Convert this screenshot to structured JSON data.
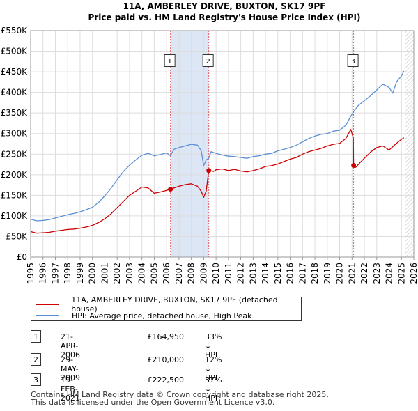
{
  "title_line1": "11A, AMBERLEY DRIVE, BUXTON, SK17 9PF",
  "title_line2": "Price paid vs. HM Land Registry's House Price Index (HPI)",
  "colors": {
    "property": "#cc0000",
    "hpi": "#5b8fd4",
    "shade": "#dce6f5",
    "marker_line": "#e06060",
    "grid": "#dddddd"
  },
  "chart_data": {
    "type": "line",
    "ylim": [
      0,
      550000
    ],
    "xlim": [
      1995,
      2026
    ],
    "y_ticks": [
      0,
      50000,
      100000,
      150000,
      200000,
      250000,
      300000,
      350000,
      400000,
      450000,
      500000,
      550000
    ],
    "y_tick_labels": [
      "£0",
      "£50K",
      "£100K",
      "£150K",
      "£200K",
      "£250K",
      "£300K",
      "£350K",
      "£400K",
      "£450K",
      "£500K",
      "£550K"
    ],
    "x_ticks": [
      "1995",
      "1996",
      "1997",
      "1998",
      "1999",
      "2000",
      "2001",
      "2002",
      "2003",
      "2004",
      "2005",
      "2006",
      "2007",
      "2008",
      "2009",
      "2010",
      "2011",
      "2012",
      "2013",
      "2014",
      "2015",
      "2016",
      "2017",
      "2018",
      "2019",
      "2020",
      "2021",
      "2022",
      "2023",
      "2024",
      "2025",
      "2026"
    ],
    "series": [
      {
        "name": "11A, AMBERLEY DRIVE, BUXTON, SK17 9PF (detached house)",
        "x": [
          1995.0,
          1995.5,
          1996.0,
          1996.5,
          1997.0,
          1997.5,
          1998.0,
          1998.5,
          1999.0,
          1999.5,
          2000.0,
          2000.5,
          2001.0,
          2001.5,
          2002.0,
          2002.5,
          2003.0,
          2003.5,
          2004.0,
          2004.5,
          2005.0,
          2005.5,
          2006.0,
          2006.3,
          2006.6,
          2007.0,
          2007.5,
          2008.0,
          2008.5,
          2008.8,
          2009.0,
          2009.2,
          2009.41,
          2009.5,
          2009.8,
          2010.0,
          2010.5,
          2011.0,
          2011.5,
          2012.0,
          2012.5,
          2013.0,
          2013.5,
          2014.0,
          2014.5,
          2015.0,
          2015.5,
          2016.0,
          2016.5,
          2017.0,
          2017.5,
          2018.0,
          2018.5,
          2019.0,
          2019.5,
          2020.0,
          2020.5,
          2020.9,
          2021.1,
          2021.13,
          2021.3,
          2021.6,
          2022.0,
          2022.5,
          2023.0,
          2023.5,
          2024.0,
          2024.5,
          2025.0,
          2025.2
        ],
        "values": [
          62000,
          58000,
          59000,
          60000,
          63000,
          65000,
          67000,
          68000,
          70000,
          73000,
          77000,
          84000,
          93000,
          105000,
          120000,
          135000,
          150000,
          160000,
          170000,
          168000,
          155000,
          158000,
          162000,
          164950,
          168000,
          172000,
          176000,
          178000,
          172000,
          160000,
          145000,
          160000,
          210000,
          210000,
          208000,
          212000,
          214000,
          210000,
          213000,
          209000,
          207000,
          210000,
          214000,
          220000,
          222000,
          226000,
          232000,
          238000,
          242000,
          250000,
          256000,
          260000,
          264000,
          270000,
          274000,
          276000,
          288000,
          310000,
          290000,
          222500,
          218000,
          228000,
          240000,
          255000,
          266000,
          270000,
          260000,
          274000,
          286000,
          290000
        ]
      },
      {
        "name": "HPI: Average price, detached house, High Peak",
        "x": [
          1995.0,
          1995.5,
          1996.0,
          1996.5,
          1997.0,
          1997.5,
          1998.0,
          1998.5,
          1999.0,
          1999.5,
          2000.0,
          2000.5,
          2001.0,
          2001.5,
          2002.0,
          2002.5,
          2003.0,
          2003.5,
          2004.0,
          2004.5,
          2005.0,
          2005.5,
          2006.0,
          2006.3,
          2006.6,
          2007.0,
          2007.5,
          2008.0,
          2008.5,
          2008.8,
          2009.0,
          2009.2,
          2009.41,
          2009.6,
          2010.0,
          2010.5,
          2011.0,
          2011.5,
          2012.0,
          2012.5,
          2013.0,
          2013.5,
          2014.0,
          2014.5,
          2015.0,
          2015.5,
          2016.0,
          2016.5,
          2017.0,
          2017.5,
          2018.0,
          2018.5,
          2019.0,
          2019.5,
          2020.0,
          2020.5,
          2020.9,
          2021.13,
          2021.5,
          2022.0,
          2022.5,
          2023.0,
          2023.5,
          2024.0,
          2024.3,
          2024.6,
          2025.0,
          2025.2
        ],
        "values": [
          92000,
          88000,
          89000,
          91000,
          95000,
          99000,
          103000,
          106000,
          110000,
          115000,
          121000,
          133000,
          149000,
          167000,
          188000,
          208000,
          223000,
          236000,
          247000,
          252000,
          246000,
          249000,
          253000,
          246000,
          262000,
          266000,
          270000,
          274000,
          272000,
          258000,
          222000,
          236000,
          240000,
          256000,
          252000,
          248000,
          245000,
          244000,
          242000,
          240000,
          244000,
          246000,
          250000,
          252000,
          258000,
          262000,
          266000,
          272000,
          280000,
          288000,
          294000,
          298000,
          300000,
          306000,
          308000,
          320000,
          342000,
          353000,
          368000,
          380000,
          392000,
          406000,
          420000,
          412000,
          398000,
          426000,
          440000,
          452000
        ]
      }
    ],
    "markers": [
      {
        "label": "1",
        "x": 2006.31,
        "value": 164950
      },
      {
        "label": "2",
        "x": 2009.41,
        "value": 210000
      },
      {
        "label": "3",
        "x": 2021.13,
        "value": 222500
      }
    ],
    "shaded_range": [
      2006.31,
      2009.41
    ],
    "future_hatch_from": 2025.3
  },
  "legend": {
    "property_label": "11A, AMBERLEY DRIVE, BUXTON, SK17 9PF (detached house)",
    "hpi_label": "HPI: Average price, detached house, High Peak"
  },
  "transactions": [
    {
      "num": "1",
      "date": "21-APR-2006",
      "price": "£164,950",
      "hpi": "33% ↓ HPI"
    },
    {
      "num": "2",
      "date": "29-MAY-2009",
      "price": "£210,000",
      "hpi": "12% ↓ HPI"
    },
    {
      "num": "3",
      "date": "19-FEB-2021",
      "price": "£222,500",
      "hpi": "37% ↓ HPI"
    }
  ],
  "footer_line1": "Contains HM Land Registry data © Crown copyright and database right 2025.",
  "footer_line2": "This data is licensed under the Open Government Licence v3.0."
}
